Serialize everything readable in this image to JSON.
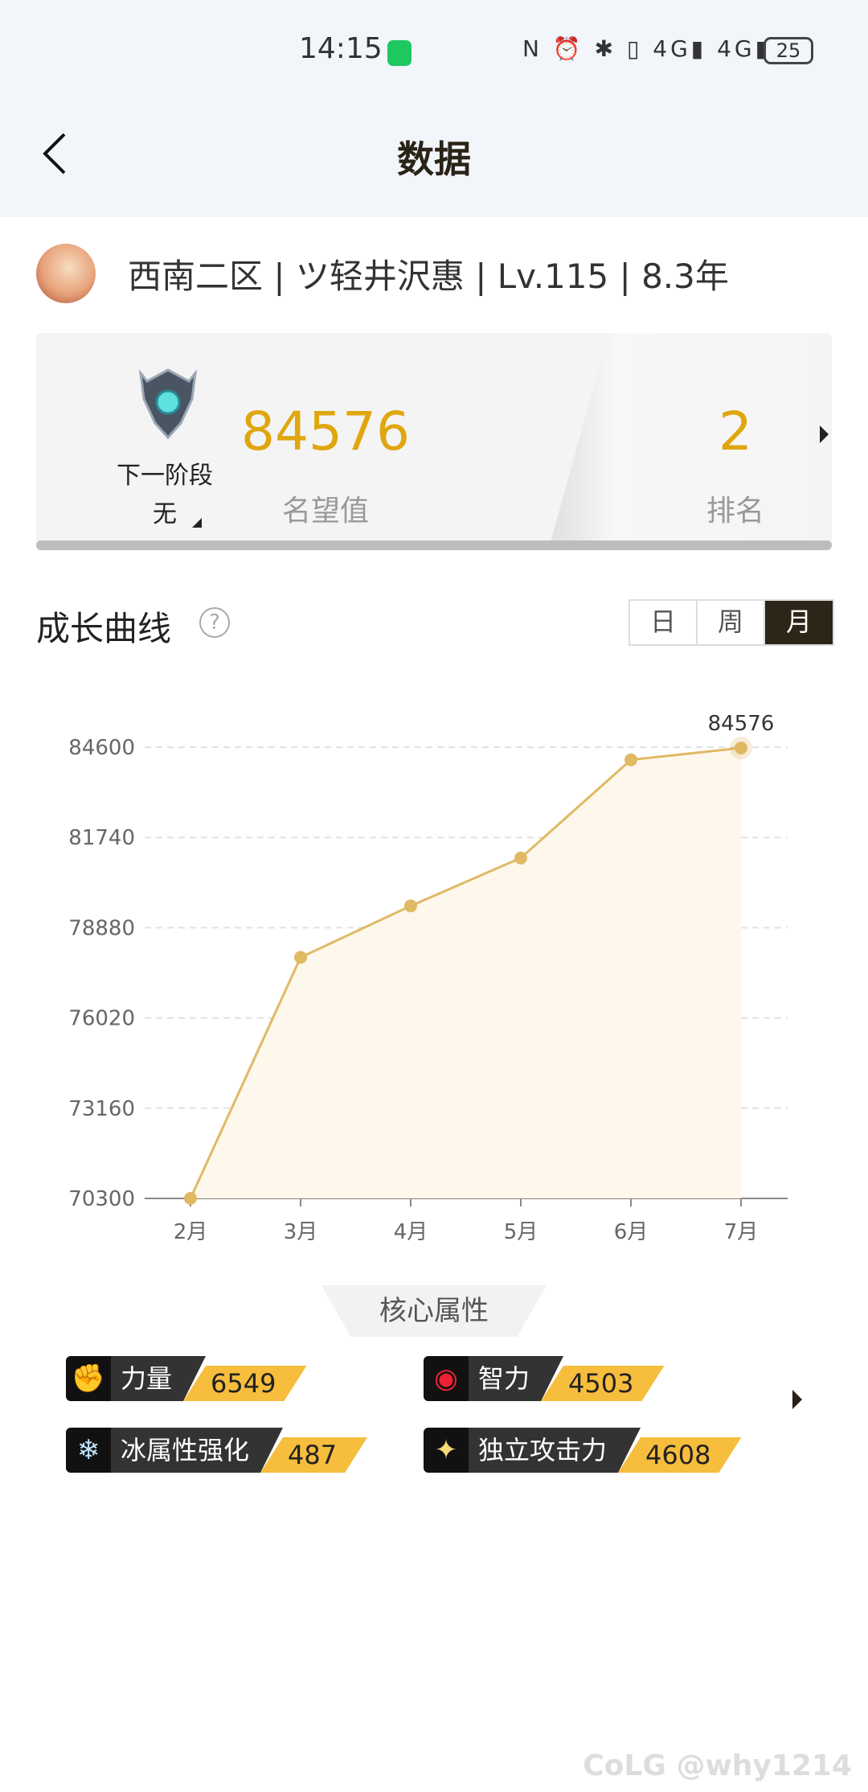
{
  "status_bar": {
    "time": "14:15",
    "icons": "N ⏰ ✱ ▯ 4G▮ 4G▮",
    "battery": "25"
  },
  "header": {
    "title": "数据"
  },
  "profile": {
    "info": "西南二区 | ツ轻井沢惠 | Lv.115 | 8.3年"
  },
  "card": {
    "next_stage_label": "下一阶段",
    "next_stage_value": "无",
    "reputation_value": "84576",
    "reputation_label": "名望值",
    "rank_value": "2",
    "rank_label": "排名"
  },
  "growth": {
    "title": "成长曲线",
    "help": "?",
    "tabs": [
      {
        "label": "日",
        "active": false
      },
      {
        "label": "周",
        "active": false
      },
      {
        "label": "月",
        "active": true
      }
    ]
  },
  "chart_data": {
    "type": "area",
    "categories": [
      "2月",
      "3月",
      "4月",
      "5月",
      "6月",
      "7月"
    ],
    "values": [
      70300,
      77940,
      79570,
      81090,
      84200,
      84576
    ],
    "yticks": [
      70300,
      73160,
      76020,
      78880,
      81740,
      84600
    ],
    "ylim": [
      70300,
      84600
    ],
    "annotations": [
      {
        "category": "7月",
        "label": "84576"
      }
    ],
    "grid": "horizontal dashed",
    "color": "#e0b964"
  },
  "core": {
    "title": "核心属性",
    "attributes": [
      {
        "name": "力量",
        "value": "6549",
        "icon": "fist-icon"
      },
      {
        "name": "智力",
        "value": "4503",
        "icon": "eye-icon"
      },
      {
        "name": "冰属性强化",
        "value": "487",
        "icon": "ice-icon"
      },
      {
        "name": "独立攻击力",
        "value": "4608",
        "icon": "sword-icon"
      }
    ]
  },
  "watermark": "CoLG @why1214"
}
